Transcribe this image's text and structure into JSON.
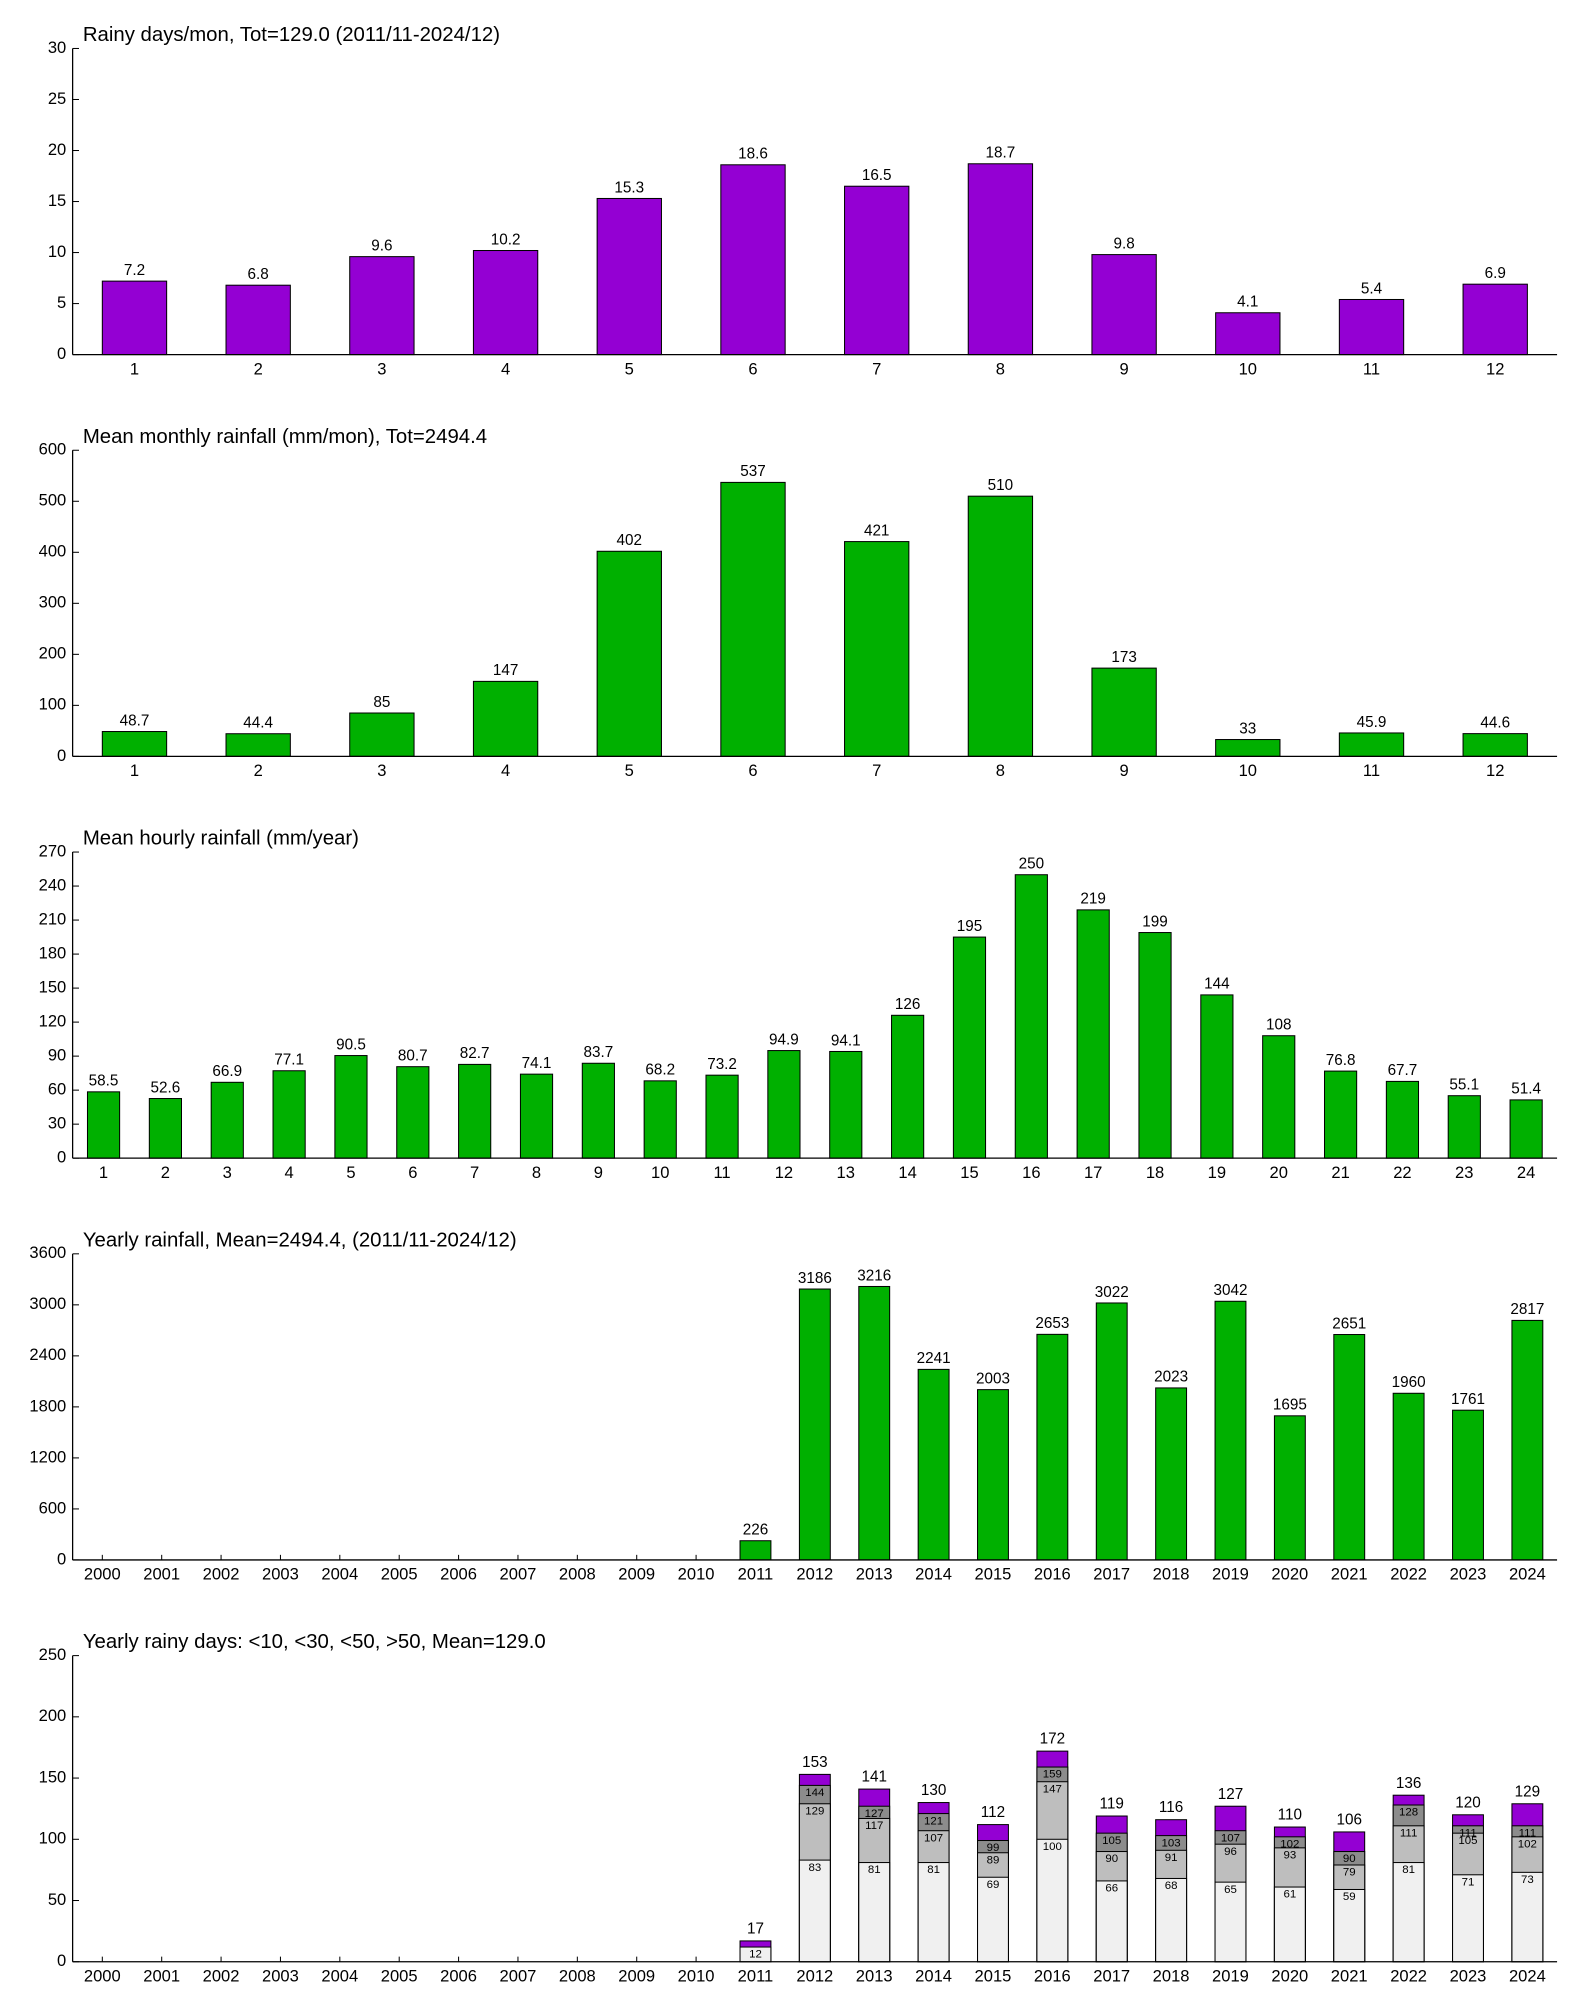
{
  "chart_data": [
    {
      "type": "bar",
      "title": "Rainy days/mon, Tot=129.0 (2011/11-2024/12)",
      "categories": [
        1,
        2,
        3,
        4,
        5,
        6,
        7,
        8,
        9,
        10,
        11,
        12
      ],
      "values": [
        7.2,
        6.8,
        9.6,
        10.2,
        15.3,
        18.6,
        16.5,
        18.7,
        9.8,
        4.1,
        5.4,
        6.9
      ],
      "color": "#9400d3",
      "ylim": [
        0,
        30
      ],
      "yticks": [
        0,
        5,
        10,
        15,
        20,
        25,
        30
      ]
    },
    {
      "type": "bar",
      "title": "Mean monthly rainfall (mm/mon), Tot=2494.4",
      "categories": [
        1,
        2,
        3,
        4,
        5,
        6,
        7,
        8,
        9,
        10,
        11,
        12
      ],
      "values": [
        48.7,
        44.4,
        85,
        147,
        402,
        537,
        421,
        510,
        173,
        33,
        45.9,
        44.6
      ],
      "color": "#00b000",
      "ylim": [
        0,
        600
      ],
      "yticks": [
        0,
        100,
        200,
        300,
        400,
        500,
        600
      ]
    },
    {
      "type": "bar",
      "title": "Mean hourly rainfall (mm/year)",
      "categories": [
        1,
        2,
        3,
        4,
        5,
        6,
        7,
        8,
        9,
        10,
        11,
        12,
        13,
        14,
        15,
        16,
        17,
        18,
        19,
        20,
        21,
        22,
        23,
        24
      ],
      "values": [
        58.5,
        52.6,
        66.9,
        77.1,
        90.5,
        80.7,
        82.7,
        74.1,
        83.7,
        68.2,
        73.2,
        94.9,
        94.1,
        126,
        195,
        250,
        219,
        199,
        144,
        108,
        76.8,
        67.7,
        55.1,
        51.4
      ],
      "color": "#00b000",
      "ylim": [
        0,
        270
      ],
      "yticks": [
        0,
        30,
        60,
        90,
        120,
        150,
        180,
        210,
        240,
        270
      ]
    },
    {
      "type": "bar",
      "title": "Yearly rainfall, Mean=2494.4, (2011/11-2024/12)",
      "categories": [
        2000,
        2001,
        2002,
        2003,
        2004,
        2005,
        2006,
        2007,
        2008,
        2009,
        2010,
        2011,
        2012,
        2013,
        2014,
        2015,
        2016,
        2017,
        2018,
        2019,
        2020,
        2021,
        2022,
        2023,
        2024
      ],
      "values": [
        null,
        null,
        null,
        null,
        null,
        null,
        null,
        null,
        null,
        null,
        null,
        226,
        3186,
        3216,
        2241,
        2003,
        2653,
        3022,
        2023,
        3042,
        1695,
        2651,
        1960,
        1761,
        2817
      ],
      "color": "#00b000",
      "ylim": [
        0,
        3600
      ],
      "yticks": [
        0,
        600,
        1200,
        1800,
        2400,
        3000,
        3600
      ]
    },
    {
      "type": "overlaid_bar",
      "title": "Yearly rainy days: <10, <30, <50, >50, Mean=129.0",
      "categories": [
        2000,
        2001,
        2002,
        2003,
        2004,
        2005,
        2006,
        2007,
        2008,
        2009,
        2010,
        2011,
        2012,
        2013,
        2014,
        2015,
        2016,
        2017,
        2018,
        2019,
        2020,
        2021,
        2022,
        2023,
        2024
      ],
      "series": [
        {
          "color": "#f0f0f0",
          "values": [
            null,
            null,
            null,
            null,
            null,
            null,
            null,
            null,
            null,
            null,
            null,
            12,
            83,
            81,
            81,
            69,
            100,
            66,
            68,
            65,
            61,
            59,
            81,
            71,
            73
          ]
        },
        {
          "color": "#bebebe",
          "values": [
            null,
            null,
            null,
            null,
            null,
            null,
            null,
            null,
            null,
            null,
            null,
            null,
            129,
            117,
            107,
            89,
            147,
            90,
            91,
            96,
            93,
            79,
            111,
            105,
            102
          ]
        },
        {
          "color": "#8c8c8c",
          "values": [
            null,
            null,
            null,
            null,
            null,
            null,
            null,
            null,
            null,
            null,
            null,
            null,
            144,
            127,
            121,
            99,
            159,
            105,
            103,
            107,
            102,
            90,
            128,
            111,
            111
          ]
        },
        {
          "color": "#9400d3",
          "values": [
            null,
            null,
            null,
            null,
            null,
            null,
            null,
            null,
            null,
            null,
            null,
            17,
            153,
            141,
            130,
            112,
            172,
            119,
            116,
            127,
            110,
            106,
            136,
            120,
            129
          ]
        }
      ],
      "ylim": [
        0,
        250
      ],
      "yticks": [
        0,
        50,
        100,
        150,
        200,
        250
      ]
    }
  ]
}
